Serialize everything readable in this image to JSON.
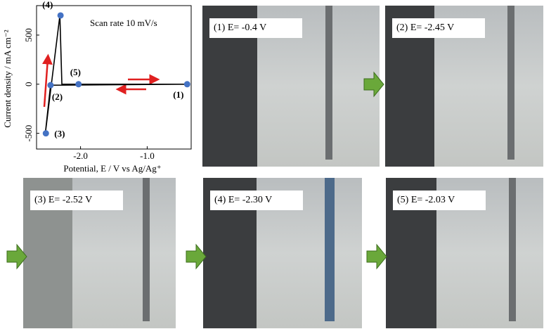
{
  "chart_data": {
    "type": "line",
    "annotation": "Scan rate 10 mV/s",
    "xlabel": "Potential, E / V vs Ag/Ag⁺",
    "ylabel": "Current density / mA cm⁻²",
    "xlim": [
      -2.66,
      -0.34
    ],
    "ylim": [
      -660,
      800
    ],
    "xticks": [
      {
        "value": -2,
        "label": "-2.0"
      },
      {
        "value": -1,
        "label": "-1.0"
      }
    ],
    "yticks": [
      -500,
      0,
      500
    ],
    "series": [
      {
        "color": "#000000",
        "x": [
          -0.4,
          -2.45,
          -2.53,
          -2.31,
          -2.28,
          -0.4
        ],
        "values": [
          0,
          -10,
          -510,
          700,
          0,
          0
        ]
      }
    ],
    "points": {
      "color": "#4472c4",
      "labels": [
        "(1)",
        "(2)",
        "(3)",
        "(4)",
        "(5)"
      ],
      "x": [
        -0.4,
        -2.45,
        -2.52,
        -2.3,
        -2.03
      ],
      "values": [
        0,
        -10,
        -500,
        700,
        0
      ]
    }
  },
  "panels": [
    {
      "caption": "(1) E= -0.4 V"
    },
    {
      "caption": "(2) E= -2.45 V"
    },
    {
      "caption": "(3) E= -2.52 V"
    },
    {
      "caption": "(4) E= -2.30 V"
    },
    {
      "caption": "(5) E= -2.03 V"
    }
  ]
}
